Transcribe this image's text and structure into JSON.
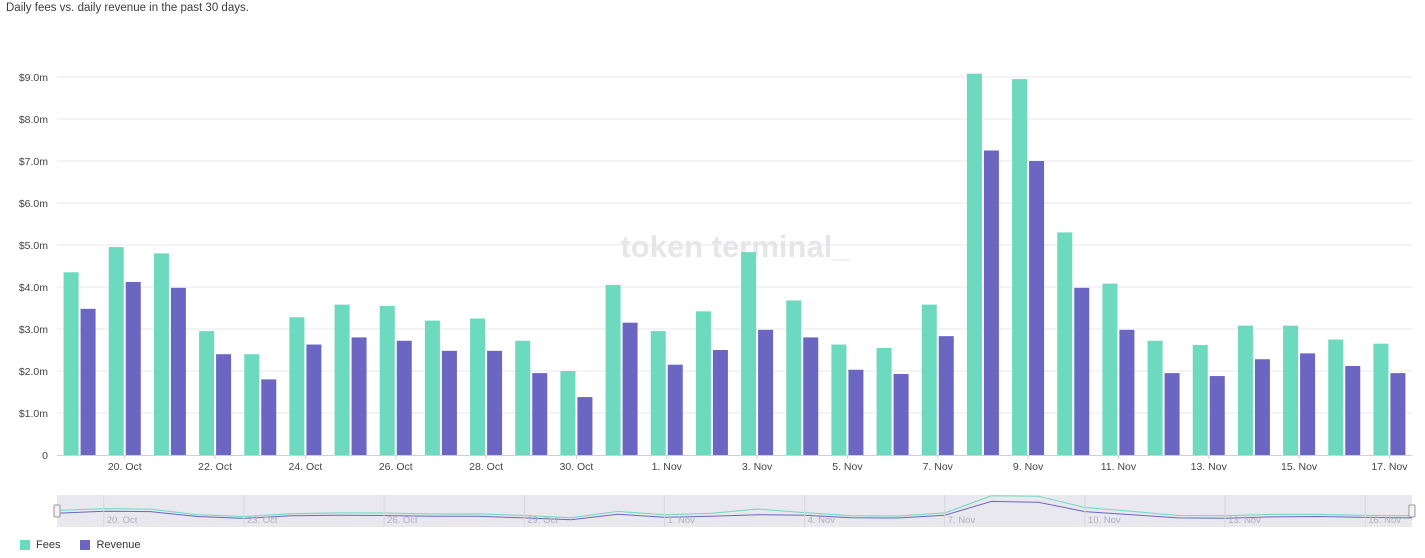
{
  "subtitle": "Daily fees vs. daily revenue in the past 30 days.",
  "watermark": "token terminal_",
  "colors": {
    "fees": "#6dd9bf",
    "revenue": "#6c66c3",
    "grid": "#e9e9ee",
    "navigator_bg": "#e8e8ee"
  },
  "chart_data": {
    "type": "bar",
    "categories": [
      "19 Oct",
      "20 Oct",
      "21 Oct",
      "22 Oct",
      "23 Oct",
      "24 Oct",
      "25 Oct",
      "26 Oct",
      "27 Oct",
      "28 Oct",
      "29 Oct",
      "30 Oct",
      "31 Oct",
      "1 Nov",
      "2 Nov",
      "3 Nov",
      "4 Nov",
      "5 Nov",
      "6 Nov",
      "7 Nov",
      "8 Nov",
      "9 Nov",
      "10 Nov",
      "11 Nov",
      "12 Nov",
      "13 Nov",
      "14 Nov",
      "15 Nov",
      "16 Nov",
      "17 Nov"
    ],
    "series": [
      {
        "name": "Fees",
        "values": [
          4.35,
          4.95,
          4.8,
          2.95,
          2.4,
          3.28,
          3.58,
          3.55,
          3.2,
          3.25,
          2.72,
          2.0,
          4.05,
          2.95,
          3.42,
          4.83,
          3.68,
          2.63,
          2.55,
          3.58,
          9.08,
          8.95,
          5.3,
          4.08,
          2.72,
          2.62,
          3.08,
          3.08,
          2.75,
          2.65
        ]
      },
      {
        "name": "Revenue",
        "values": [
          3.48,
          4.12,
          3.98,
          2.4,
          1.8,
          2.63,
          2.8,
          2.72,
          2.48,
          2.48,
          1.95,
          1.38,
          3.15,
          2.15,
          2.5,
          2.98,
          2.8,
          2.03,
          1.93,
          2.83,
          7.25,
          7.0,
          3.98,
          2.98,
          1.95,
          1.88,
          2.28,
          2.42,
          2.12,
          1.95
        ]
      }
    ],
    "y_unit": "$m",
    "ylim": [
      0,
      9.0
    ],
    "yticks": [
      "0",
      "$1.0m",
      "$2.0m",
      "$3.0m",
      "$4.0m",
      "$5.0m",
      "$6.0m",
      "$7.0m",
      "$8.0m",
      "$9.0m"
    ],
    "xtick_labels": [
      "20. Oct",
      "22. Oct",
      "24. Oct",
      "26. Oct",
      "28. Oct",
      "30. Oct",
      "1. Nov",
      "3. Nov",
      "5. Nov",
      "7. Nov",
      "9. Nov",
      "11. Nov",
      "13. Nov",
      "15. Nov",
      "17. Nov"
    ],
    "navigator_labels": [
      "20. Oct",
      "23. Oct",
      "26. Oct",
      "29. Oct",
      "1. Nov",
      "4. Nov",
      "7. Nov",
      "10. Nov",
      "13. Nov",
      "16. Nov"
    ],
    "grid": true,
    "legend_position": "bottom-left"
  },
  "legend": [
    {
      "label": "Fees",
      "color": "#6dd9bf"
    },
    {
      "label": "Revenue",
      "color": "#6c66c3"
    }
  ]
}
